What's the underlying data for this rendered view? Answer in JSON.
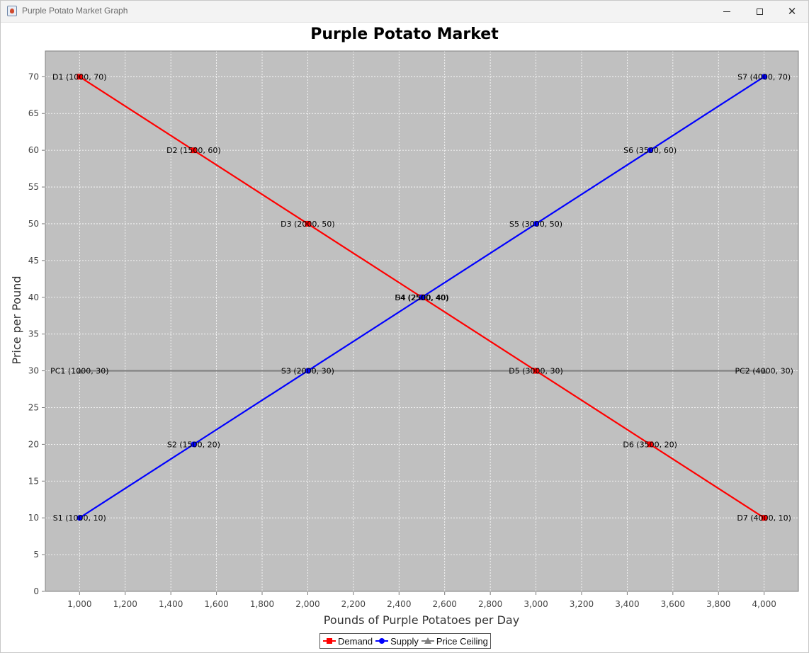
{
  "window": {
    "title": "Purple Potato Market Graph",
    "minimize_icon": "minimize-icon",
    "maximize_icon": "maximize-icon",
    "close_icon": "close-icon",
    "close_glyph": "✕"
  },
  "colors": {
    "plot_background": "#c0c0c0",
    "gridline": "#ffffff",
    "demand": "#ff0000",
    "supply": "#0000ff",
    "price_ceiling": "#808080"
  },
  "chart_data": {
    "type": "line",
    "title": "Purple Potato Market",
    "xlabel": "Pounds of Purple Potatoes per Day",
    "ylabel": "Price per Pound",
    "xlim": [
      850,
      4150
    ],
    "ylim": [
      0,
      73.5
    ],
    "x_ticks": [
      1000,
      1200,
      1400,
      1600,
      1800,
      2000,
      2200,
      2400,
      2600,
      2800,
      3000,
      3200,
      3400,
      3600,
      3800,
      4000
    ],
    "x_tick_labels": [
      "1,000",
      "1,200",
      "1,400",
      "1,600",
      "1,800",
      "2,000",
      "2,200",
      "2,400",
      "2,600",
      "2,800",
      "3,000",
      "3,200",
      "3,400",
      "3,600",
      "3,800",
      "4,000"
    ],
    "y_ticks": [
      0,
      5,
      10,
      15,
      20,
      25,
      30,
      35,
      40,
      45,
      50,
      55,
      60,
      65,
      70
    ],
    "y_tick_labels": [
      "0",
      "5",
      "10",
      "15",
      "20",
      "25",
      "30",
      "35",
      "40",
      "45",
      "50",
      "55",
      "60",
      "65",
      "70"
    ],
    "grid": true,
    "legend_position": "bottom",
    "series": [
      {
        "name": "Demand",
        "color": "#ff0000",
        "marker": "square",
        "points": [
          {
            "x": 1000,
            "y": 70,
            "label": "D1 (1000, 70)"
          },
          {
            "x": 1500,
            "y": 60,
            "label": "D2 (1500, 60)"
          },
          {
            "x": 2000,
            "y": 50,
            "label": "D3 (2000, 50)"
          },
          {
            "x": 2500,
            "y": 40,
            "label": "D4 (2500, 40)"
          },
          {
            "x": 3000,
            "y": 30,
            "label": "D5 (3000, 30)"
          },
          {
            "x": 3500,
            "y": 20,
            "label": "D6 (3500, 20)"
          },
          {
            "x": 4000,
            "y": 10,
            "label": "D7 (4000, 10)"
          }
        ]
      },
      {
        "name": "Supply",
        "color": "#0000ff",
        "marker": "circle",
        "points": [
          {
            "x": 1000,
            "y": 10,
            "label": "S1 (1000, 10)"
          },
          {
            "x": 1500,
            "y": 20,
            "label": "S2 (1500, 20)"
          },
          {
            "x": 2000,
            "y": 30,
            "label": "S3 (2000, 30)"
          },
          {
            "x": 2500,
            "y": 40,
            "label": "S4 (2500, 40)"
          },
          {
            "x": 3000,
            "y": 50,
            "label": "S5 (3000, 50)"
          },
          {
            "x": 3500,
            "y": 60,
            "label": "S6 (3500, 60)"
          },
          {
            "x": 4000,
            "y": 70,
            "label": "S7 (4000, 70)"
          }
        ]
      },
      {
        "name": "Price Ceiling",
        "color": "#808080",
        "marker": "triangle",
        "points": [
          {
            "x": 1000,
            "y": 30,
            "label": "PC1 (1000, 30)"
          },
          {
            "x": 4000,
            "y": 30,
            "label": "PC2 (4000, 30)"
          }
        ]
      }
    ]
  }
}
